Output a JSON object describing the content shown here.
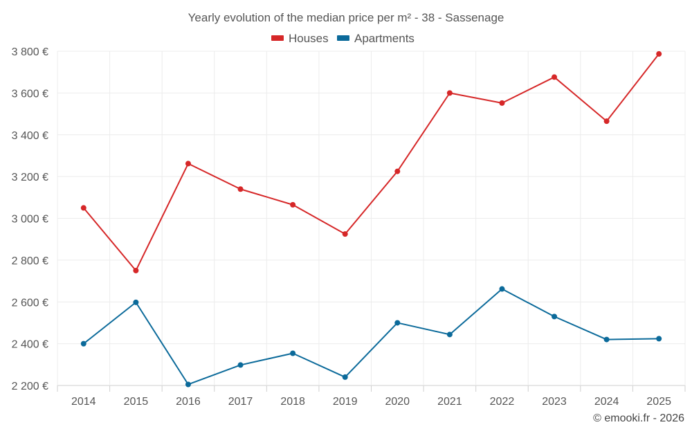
{
  "chart_data": {
    "type": "line",
    "title": "Yearly evolution of the median price per m² - 38 - Sassenage",
    "categories": [
      "2014",
      "2015",
      "2016",
      "2017",
      "2018",
      "2019",
      "2020",
      "2021",
      "2022",
      "2023",
      "2024",
      "2025"
    ],
    "ylim": [
      2200,
      3800
    ],
    "yticks": [
      2200,
      2400,
      2600,
      2800,
      3000,
      3200,
      3400,
      3600,
      3800
    ],
    "ytick_labels": [
      "2 200 €",
      "2 400 €",
      "2 600 €",
      "2 800 €",
      "3 000 €",
      "3 200 €",
      "3 400 €",
      "3 600 €",
      "3 800 €"
    ],
    "grid": true,
    "legend_position": "top-center",
    "series": [
      {
        "name": "Houses",
        "color": "#d62728",
        "values": [
          3050,
          2750,
          3262,
          3140,
          3065,
          2925,
          3225,
          3600,
          3552,
          3676,
          3465,
          3787
        ]
      },
      {
        "name": "Apartments",
        "color": "#0b6a9a",
        "values": [
          2400,
          2598,
          2205,
          2298,
          2354,
          2240,
          2500,
          2444,
          2662,
          2530,
          2420,
          2424
        ]
      }
    ]
  },
  "credit": "© emooki.fr - 2026"
}
